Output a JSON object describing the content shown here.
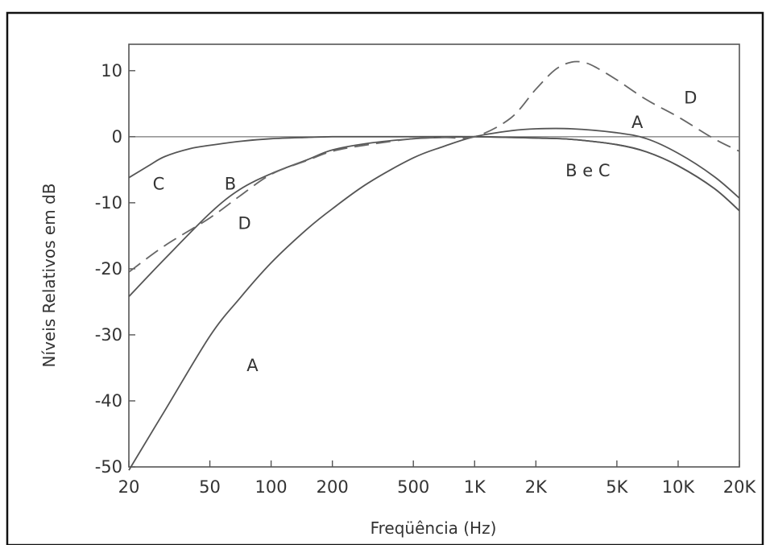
{
  "chart_data": {
    "type": "line",
    "title": "",
    "xlabel": "Freqüência (Hz)",
    "ylabel": "Níveis Relativos em dB",
    "x_scale": "log",
    "xlim": [
      20,
      20000
    ],
    "ylim": [
      -50,
      14
    ],
    "x_ticks": [
      {
        "value": 20,
        "label": "20"
      },
      {
        "value": 50,
        "label": "50"
      },
      {
        "value": 100,
        "label": "100"
      },
      {
        "value": 200,
        "label": "200"
      },
      {
        "value": 500,
        "label": "500"
      },
      {
        "value": 1000,
        "label": "1K"
      },
      {
        "value": 2000,
        "label": "2K"
      },
      {
        "value": 5000,
        "label": "5K"
      },
      {
        "value": 10000,
        "label": "10K"
      },
      {
        "value": 20000,
        "label": "20K"
      }
    ],
    "y_ticks": [
      {
        "value": 10,
        "label": "10"
      },
      {
        "value": 0,
        "label": "0"
      },
      {
        "value": -10,
        "label": "-10"
      },
      {
        "value": -20,
        "label": "-20"
      },
      {
        "value": -30,
        "label": "-30"
      },
      {
        "value": -40,
        "label": "-40"
      },
      {
        "value": -50,
        "label": "-50"
      }
    ],
    "reference_line_y": 0,
    "grid": false,
    "series": [
      {
        "name": "A",
        "style": "solid",
        "x": [
          20,
          30,
          50,
          70,
          100,
          150,
          200,
          300,
          500,
          700,
          1000,
          1500,
          2000,
          3000,
          5000,
          7000,
          10000,
          15000,
          20000
        ],
        "y": [
          -50.5,
          -41.5,
          -30.2,
          -24.5,
          -19.1,
          -14.0,
          -10.9,
          -7.0,
          -3.2,
          -1.5,
          0,
          0.9,
          1.2,
          1.2,
          0.6,
          -0.3,
          -2.5,
          -6.0,
          -9.3
        ]
      },
      {
        "name": "B",
        "style": "solid",
        "x": [
          20,
          30,
          50,
          70,
          100,
          150,
          200,
          300,
          500,
          700,
          1000,
          1500,
          2000,
          3000,
          5000,
          7000,
          10000,
          15000,
          20000
        ],
        "y": [
          -24.2,
          -18.5,
          -11.6,
          -8.0,
          -5.6,
          -3.5,
          -2.0,
          -1.0,
          -0.3,
          -0.1,
          0,
          -0.1,
          -0.2,
          -0.4,
          -1.2,
          -2.3,
          -4.4,
          -7.8,
          -11.2
        ]
      },
      {
        "name": "C",
        "style": "solid",
        "x": [
          20,
          25,
          30,
          40,
          50,
          70,
          100,
          150,
          200,
          300,
          500,
          1000,
          2000,
          3000,
          5000,
          7000,
          10000,
          15000,
          20000
        ],
        "y": [
          -6.2,
          -4.4,
          -3.0,
          -1.8,
          -1.3,
          -0.7,
          -0.3,
          -0.1,
          0,
          0,
          0,
          0,
          -0.2,
          -0.4,
          -1.2,
          -2.3,
          -4.4,
          -7.8,
          -11.2
        ]
      },
      {
        "name": "D",
        "style": "dashed",
        "x": [
          20,
          30,
          50,
          70,
          100,
          150,
          200,
          300,
          500,
          700,
          1000,
          1500,
          2000,
          2500,
          3000,
          3500,
          4000,
          5000,
          7000,
          10000,
          15000,
          20000
        ],
        "y": [
          -20.5,
          -16.5,
          -12.3,
          -9.0,
          -5.7,
          -3.6,
          -2.2,
          -1.2,
          -0.3,
          -0.1,
          0,
          2.8,
          7.2,
          10.2,
          11.3,
          11.2,
          10.4,
          8.6,
          5.6,
          3.0,
          -0.3,
          -2.2
        ]
      }
    ],
    "annotations": [
      {
        "text": "C",
        "x": 28,
        "y": -7.0
      },
      {
        "text": "B",
        "x": 63,
        "y": -7.0
      },
      {
        "text": "D",
        "x": 74,
        "y": -13.0
      },
      {
        "text": "A",
        "x": 81,
        "y": -34.5
      },
      {
        "text": "B e C",
        "x": 3600,
        "y": -5.0
      },
      {
        "text": "A",
        "x": 6300,
        "y": 2.3
      },
      {
        "text": "D",
        "x": 11500,
        "y": 6.0
      }
    ]
  }
}
